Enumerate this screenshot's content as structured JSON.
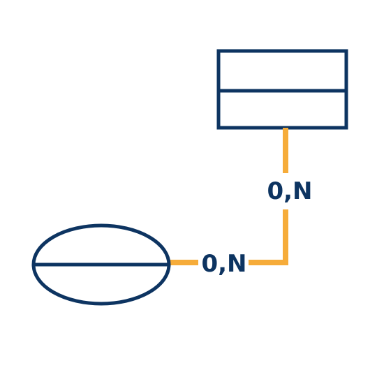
{
  "colors": {
    "shape_stroke": "#0d3461",
    "connector": "#f6ac3a",
    "label": "#0d3461",
    "background": "#ffffff"
  },
  "diagram": {
    "entity": {
      "shape": "rectangle-split-horizontal"
    },
    "attribute": {
      "shape": "ellipse-split-horizontal"
    },
    "connector": {
      "entity_cardinality": "0,N",
      "attribute_cardinality": "0,N"
    }
  }
}
